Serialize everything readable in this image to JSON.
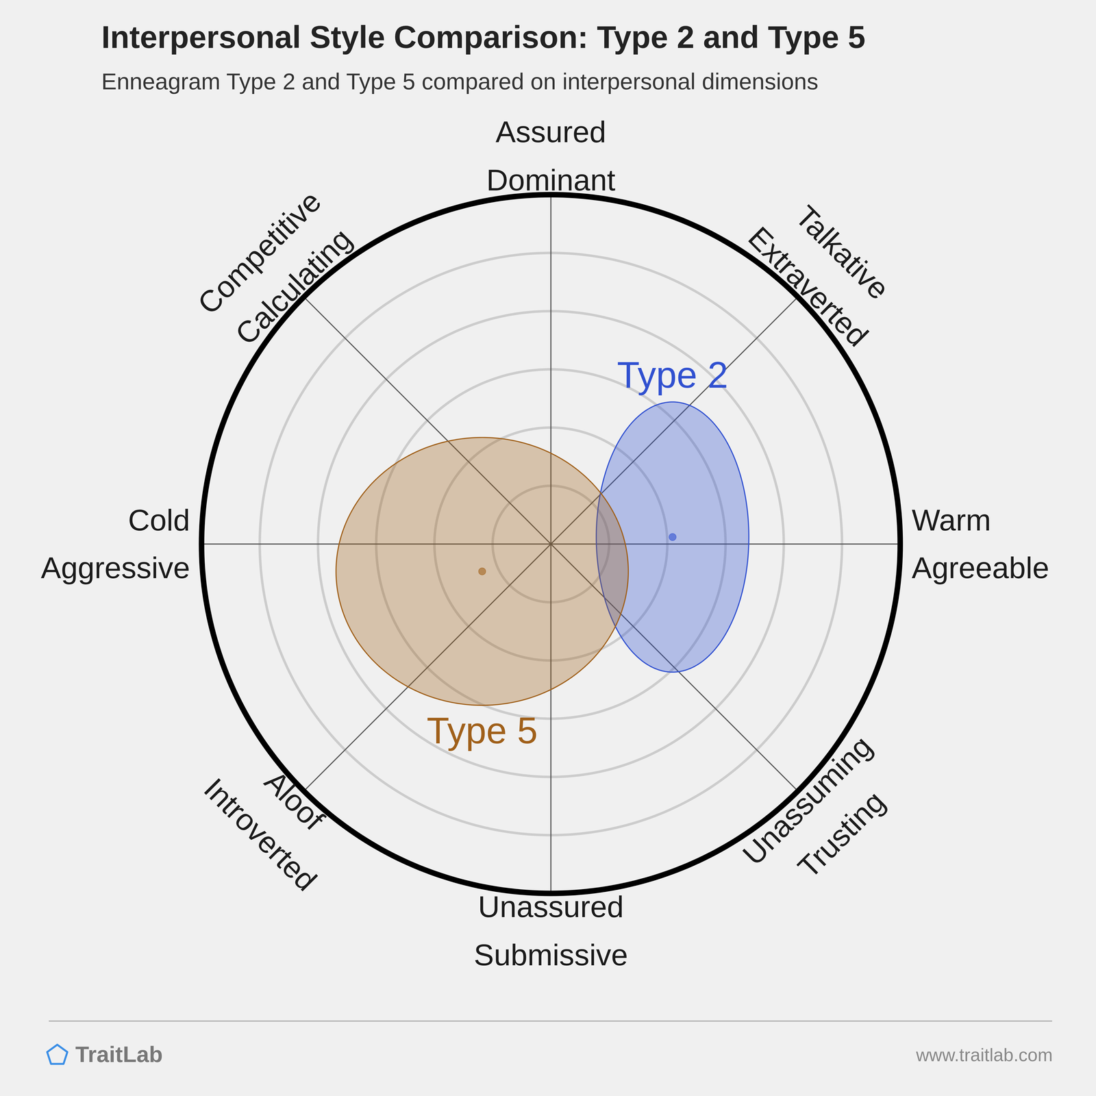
{
  "chart_data": {
    "type": "circumplex",
    "title": "Interpersonal Style Comparison: Type 2 and Type 5",
    "subtitle": "Enneagram Type 2 and Type 5 compared on interpersonal dimensions",
    "dimensions": [
      [
        "Assured",
        "Dominant"
      ],
      [
        "Talkative",
        "Extraverted"
      ],
      [
        "Warm",
        "Agreeable"
      ],
      [
        "Unassuming",
        "Trusting"
      ],
      [
        "Unassured",
        "Submissive"
      ],
      [
        "Aloof",
        "Introverted"
      ],
      [
        "Cold",
        "Aggressive"
      ],
      [
        "Competitive",
        "Calculating"
      ]
    ],
    "xlim": [
      -6,
      6
    ],
    "ylim": [
      -6,
      6
    ],
    "rings": [
      1,
      2,
      3,
      4,
      5,
      6
    ],
    "tick_labels": false,
    "series": [
      {
        "name": "Type 2",
        "color": "#3050d0",
        "x": 2.09,
        "y": 0.12,
        "x_spread": 1.31,
        "y_spread": 2.32
      },
      {
        "name": "Type 5",
        "color": "#a0601a",
        "x": -1.18,
        "y": -0.47,
        "x_spread": 2.51,
        "y_spread": 2.3
      }
    ]
  },
  "footer": {
    "brand": "TraitLab",
    "url": "www.traitlab.com"
  }
}
